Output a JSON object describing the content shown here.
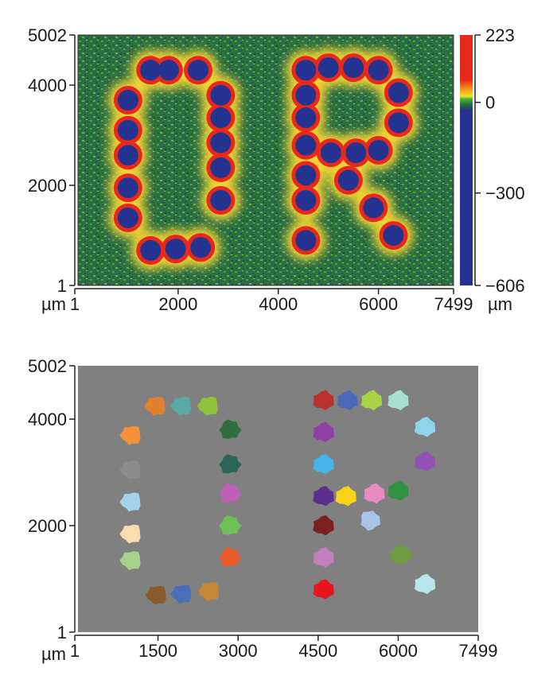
{
  "chart_data": [
    {
      "type": "heatmap",
      "title": "",
      "xunit": "µm",
      "yunit": "",
      "x_ticks": [
        "1",
        "2000",
        "4000",
        "6000",
        "7499"
      ],
      "x_tick_values": [
        1,
        2000,
        4000,
        6000,
        7499
      ],
      "y_ticks": [
        "5002",
        "4000",
        "2000",
        "1"
      ],
      "y_tick_values": [
        5002,
        4000,
        2000,
        1
      ],
      "xlim": [
        1,
        7499
      ],
      "ylim": [
        1,
        5002
      ],
      "colorbar": {
        "unit": "µm",
        "ticks": [
          "223",
          "0",
          "−300",
          "−606"
        ],
        "tick_values": [
          223,
          0,
          -300,
          -606
        ],
        "range": [
          -606,
          223
        ],
        "colors": [
          "#e8281a",
          "#e8281a",
          "#f5a21a",
          "#e9e524",
          "#4fae43",
          "#1e6d38",
          "#24338f",
          "#24338f"
        ]
      },
      "letters": "OR",
      "dots": [
        [
          1450,
          4300
        ],
        [
          1810,
          4300
        ],
        [
          2400,
          4300
        ],
        [
          1000,
          3700
        ],
        [
          1000,
          3100
        ],
        [
          1000,
          2600
        ],
        [
          1000,
          1950
        ],
        [
          1000,
          1350
        ],
        [
          1450,
          700
        ],
        [
          1950,
          730
        ],
        [
          2450,
          760
        ],
        [
          2850,
          3800
        ],
        [
          2850,
          3350
        ],
        [
          2850,
          2850
        ],
        [
          2850,
          2350
        ],
        [
          2850,
          1700
        ],
        [
          4550,
          4300
        ],
        [
          5000,
          4350
        ],
        [
          5500,
          4350
        ],
        [
          6000,
          4300
        ],
        [
          4550,
          3800
        ],
        [
          4550,
          3350
        ],
        [
          4550,
          2800
        ],
        [
          4550,
          2200
        ],
        [
          4550,
          1700
        ],
        [
          4550,
          900
        ],
        [
          6400,
          3850
        ],
        [
          6400,
          3250
        ],
        [
          5050,
          2650
        ],
        [
          5550,
          2650
        ],
        [
          6000,
          2700
        ],
        [
          5400,
          2100
        ],
        [
          5900,
          1550
        ],
        [
          6300,
          1000
        ]
      ]
    },
    {
      "type": "scatter",
      "title": "",
      "xunit": "µm",
      "x_ticks": [
        "1",
        "1500",
        "3000",
        "4500",
        "6000",
        "7499"
      ],
      "x_tick_values": [
        1,
        1500,
        3000,
        4500,
        6000,
        7499
      ],
      "y_ticks": [
        "5002",
        "4000",
        "2000",
        "1"
      ],
      "y_tick_values": [
        5002,
        4000,
        2000,
        1
      ],
      "xlim": [
        1,
        7499
      ],
      "ylim": [
        1,
        5002
      ],
      "background": "#808080",
      "blobs": [
        {
          "x": 1460,
          "y": 4250,
          "color": "#e0812e"
        },
        {
          "x": 1950,
          "y": 4250,
          "color": "#5aa9a5"
        },
        {
          "x": 2450,
          "y": 4250,
          "color": "#8fc43a"
        },
        {
          "x": 1000,
          "y": 3700,
          "color": "#f4923a"
        },
        {
          "x": 1000,
          "y": 3050,
          "color": "#8c8c8c"
        },
        {
          "x": 1000,
          "y": 2450,
          "color": "#a7d3ea"
        },
        {
          "x": 1000,
          "y": 1850,
          "color": "#fbdcb2"
        },
        {
          "x": 1000,
          "y": 1350,
          "color": "#a8d28c"
        },
        {
          "x": 1480,
          "y": 700,
          "color": "#8a5a2e"
        },
        {
          "x": 1950,
          "y": 720,
          "color": "#4a6fb8"
        },
        {
          "x": 2470,
          "y": 770,
          "color": "#c98637"
        },
        {
          "x": 2850,
          "y": 3800,
          "color": "#2f6e3d"
        },
        {
          "x": 2850,
          "y": 3150,
          "color": "#2e6458"
        },
        {
          "x": 2850,
          "y": 2600,
          "color": "#c05fb8"
        },
        {
          "x": 2850,
          "y": 2000,
          "color": "#6fc25a"
        },
        {
          "x": 2850,
          "y": 1400,
          "color": "#ea5b2a"
        },
        {
          "x": 4600,
          "y": 4350,
          "color": "#b9312f"
        },
        {
          "x": 5050,
          "y": 4350,
          "color": "#4b69b8"
        },
        {
          "x": 5500,
          "y": 4350,
          "color": "#a8d548"
        },
        {
          "x": 6000,
          "y": 4350,
          "color": "#a8e0cf"
        },
        {
          "x": 6500,
          "y": 3850,
          "color": "#8fd4ea"
        },
        {
          "x": 6500,
          "y": 3200,
          "color": "#9251b3"
        },
        {
          "x": 4600,
          "y": 3750,
          "color": "#8e3fa3"
        },
        {
          "x": 4600,
          "y": 3150,
          "color": "#44b5ea"
        },
        {
          "x": 4600,
          "y": 2550,
          "color": "#5b2e8f"
        },
        {
          "x": 5020,
          "y": 2550,
          "color": "#f7d31a"
        },
        {
          "x": 5550,
          "y": 2600,
          "color": "#e98bc0"
        },
        {
          "x": 6000,
          "y": 2650,
          "color": "#2f9141"
        },
        {
          "x": 5480,
          "y": 2100,
          "color": "#a9c4ea"
        },
        {
          "x": 4600,
          "y": 2000,
          "color": "#7c1f1f"
        },
        {
          "x": 4600,
          "y": 1400,
          "color": "#c17fbd"
        },
        {
          "x": 6050,
          "y": 1450,
          "color": "#6e9b3d"
        },
        {
          "x": 6500,
          "y": 900,
          "color": "#b9e5ed"
        },
        {
          "x": 4600,
          "y": 800,
          "color": "#e8161c"
        }
      ]
    }
  ]
}
